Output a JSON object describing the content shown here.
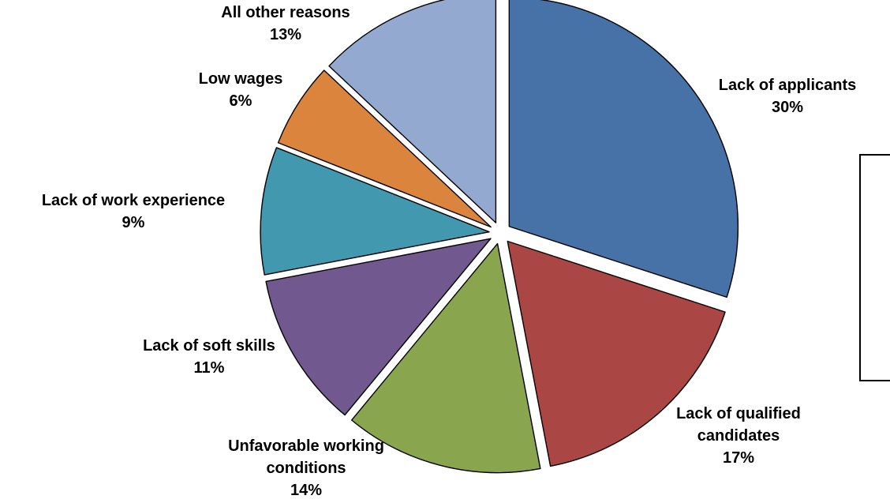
{
  "chart_data": {
    "type": "pie",
    "title": "",
    "slices": [
      {
        "label_lines": [
          "Lack of applicants"
        ],
        "value": 30,
        "value_label": "30%",
        "color": "#4672A8"
      },
      {
        "label_lines": [
          "Lack of qualified",
          "candidates"
        ],
        "value": 17,
        "value_label": "17%",
        "color": "#AA4644"
      },
      {
        "label_lines": [
          "Unfavorable working",
          "conditions"
        ],
        "value": 14,
        "value_label": "14%",
        "color": "#89A54E"
      },
      {
        "label_lines": [
          "Lack of soft skills"
        ],
        "value": 11,
        "value_label": "11%",
        "color": "#71588F"
      },
      {
        "label_lines": [
          "Lack of work experience"
        ],
        "value": 9,
        "value_label": "9%",
        "color": "#4198AF"
      },
      {
        "label_lines": [
          "Low wages"
        ],
        "value": 6,
        "value_label": "6%",
        "color": "#DB843D"
      },
      {
        "label_lines": [
          "All other reasons"
        ],
        "value": 13,
        "value_label": "13%",
        "color": "#93A9CF"
      }
    ],
    "start_angle": "12 o'clock",
    "direction": "clockwise",
    "exploded": true,
    "legend": "empty box at right"
  }
}
